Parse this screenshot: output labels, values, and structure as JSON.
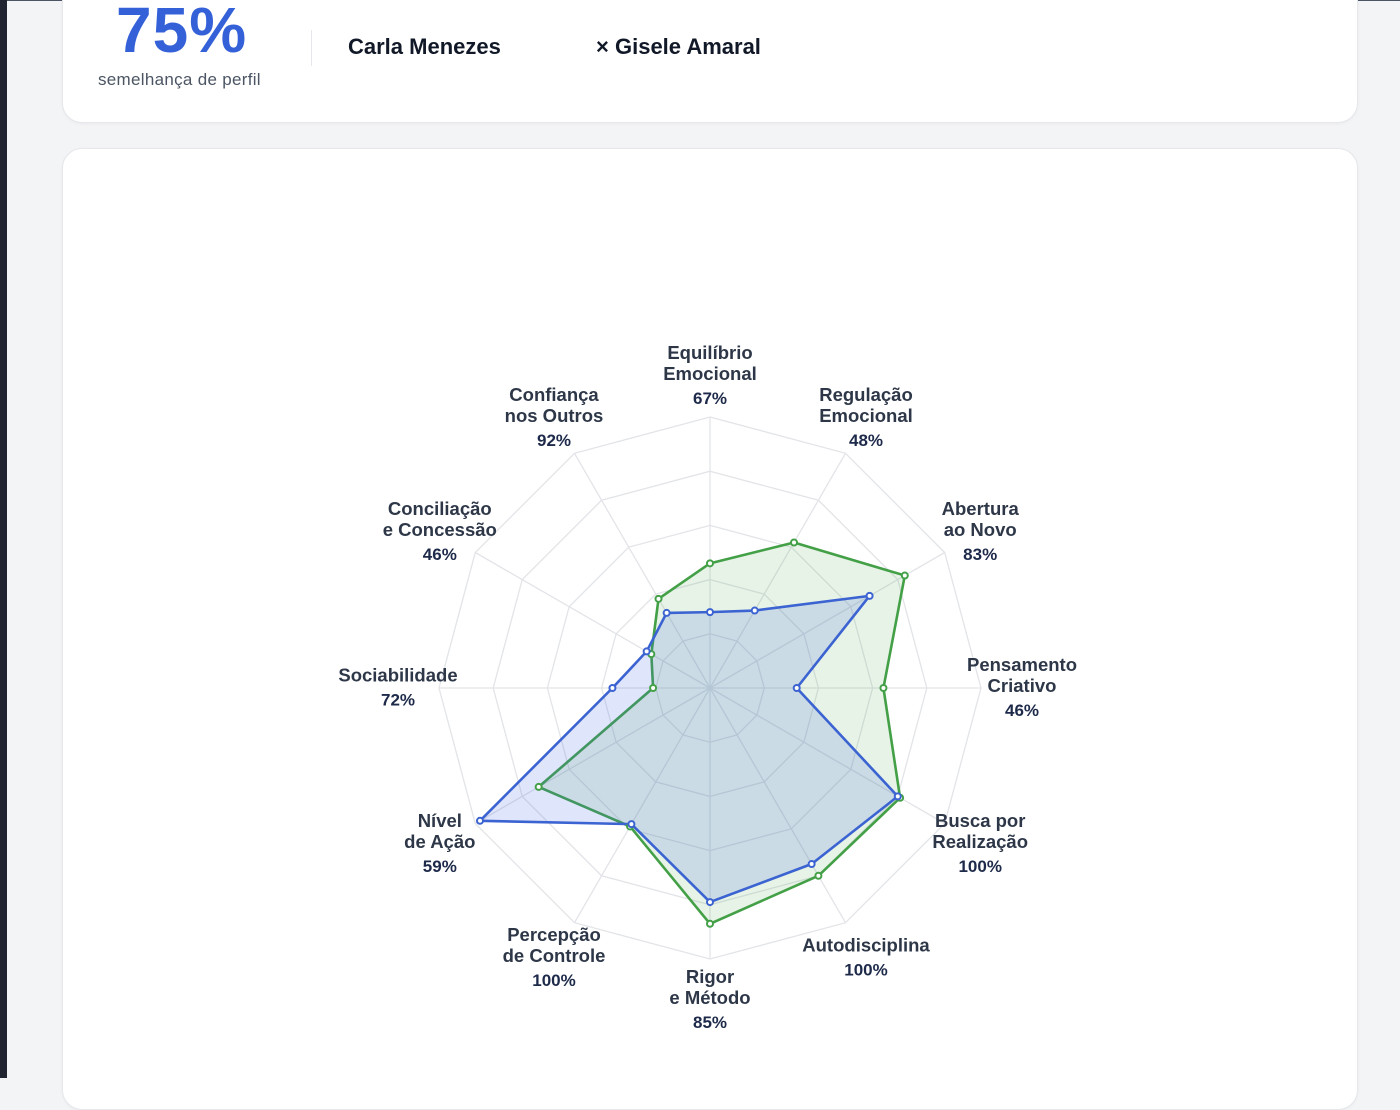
{
  "summary": {
    "score": "75%",
    "score_label": "semelhança de perfil",
    "person_a": "Carla Menezes",
    "separator": "×",
    "person_b": "Gisele Amaral"
  },
  "colors": {
    "accent": "#3461d8",
    "series_a": "#3b63d1",
    "series_b": "#43a047"
  },
  "chart_data": {
    "type": "radar",
    "title": "",
    "range": [
      0,
      100
    ],
    "rings": 5,
    "grid": true,
    "axes": [
      {
        "label": [
          "Equilíbrio",
          "Emocional"
        ],
        "value_label": "67%"
      },
      {
        "label": [
          "Regulação",
          "Emocional"
        ],
        "value_label": "48%"
      },
      {
        "label": [
          "Abertura",
          "ao Novo"
        ],
        "value_label": "83%"
      },
      {
        "label": [
          "Pensamento",
          "Criativo"
        ],
        "value_label": "46%"
      },
      {
        "label": [
          "Busca por",
          "Realização"
        ],
        "value_label": "100%"
      },
      {
        "label": [
          "Autodisciplina"
        ],
        "value_label": "100%"
      },
      {
        "label": [
          "Rigor",
          "e Método"
        ],
        "value_label": "85%"
      },
      {
        "label": [
          "Percepção",
          "de Controle"
        ],
        "value_label": "100%"
      },
      {
        "label": [
          "Nível",
          "de Ação"
        ],
        "value_label": "59%"
      },
      {
        "label": [
          "Sociabilidade"
        ],
        "value_label": "72%"
      },
      {
        "label": [
          "Conciliação",
          "e Concessão"
        ],
        "value_label": "46%"
      },
      {
        "label": [
          "Confiança",
          "nos Outros"
        ],
        "value_label": "92%"
      }
    ],
    "series": [
      {
        "name": "Carla Menezes",
        "color": "#3b63d1",
        "values": [
          28,
          33,
          68,
          32,
          80,
          75,
          79,
          58,
          98,
          36,
          27,
          32
        ]
      },
      {
        "name": "Gisele Amaral",
        "color": "#43a047",
        "values": [
          46,
          62,
          83,
          64,
          81,
          80,
          87,
          59,
          73,
          21,
          25,
          38
        ]
      }
    ]
  }
}
